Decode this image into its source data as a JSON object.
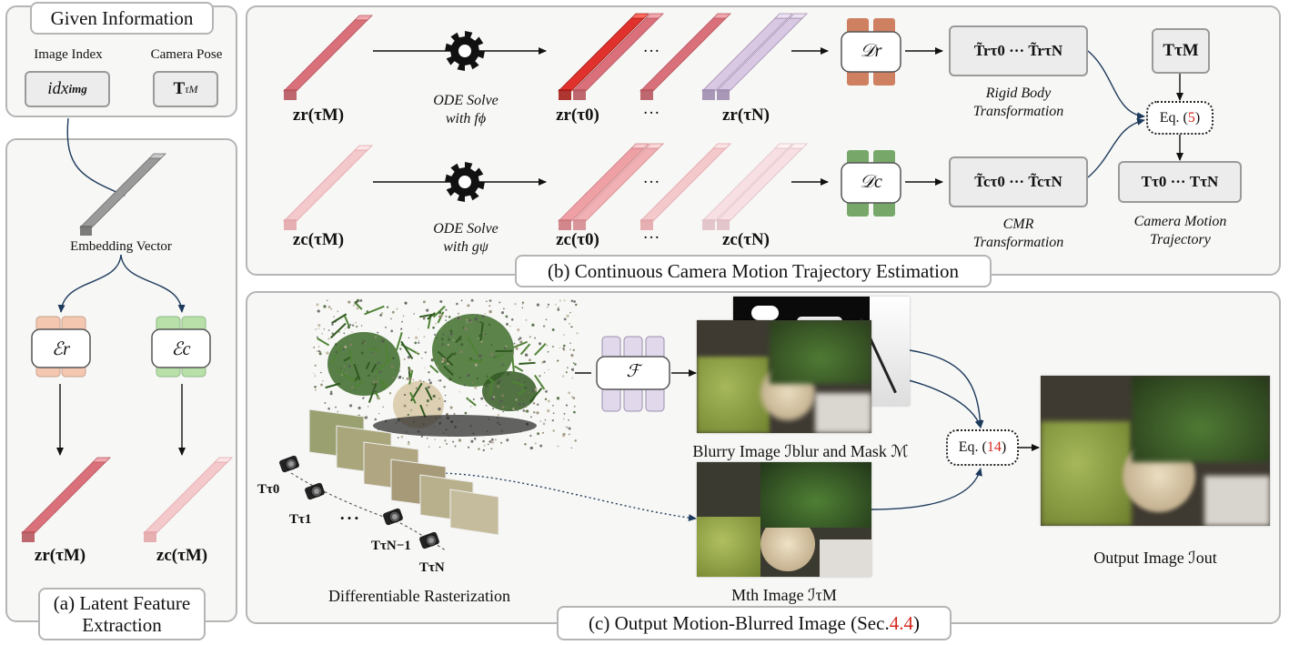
{
  "given": {
    "title": "Given Information",
    "image_index_label": "Image Index",
    "camera_pose_label": "Camera Pose",
    "idx_text": "idx",
    "idx_sub": "img",
    "pose_text": "T",
    "pose_sup": "τM"
  },
  "panel_a": {
    "embedding_label": "Embedding Vector",
    "enc_r": "ℰr",
    "enc_c": "ℰc",
    "zr_label": "zr(τM)",
    "zc_label": "zc(τM)",
    "caption_line1": "(a) Latent Feature",
    "caption_line2": "Extraction"
  },
  "panel_b": {
    "caption": "(b) Continuous Camera Motion Trajectory Estimation",
    "zr_m": "zr(τM)",
    "zc_m": "zc(τM)",
    "ode_r_line1": "ODE Solve",
    "ode_r_line2": "with fϕ",
    "ode_c_line1": "ODE Solve",
    "ode_c_line2": "with gψ",
    "zr_0": "zr(τ0)",
    "zr_n": "zr(τN)",
    "zc_0": "zc(τ0)",
    "zc_n": "zc(τN)",
    "ellipsis": "···",
    "dec_r": "𝒟r",
    "dec_c": "𝒟c",
    "trans_r": "T̃rτ0  ···  T̃rτN",
    "trans_c": "T̃cτ0  ···  T̃cτN",
    "rigid_line1": "Rigid Body",
    "rigid_line2": "Transformation",
    "cmr_line1": "CMR",
    "cmr_line2": "Transformation",
    "tm_box": "TτM",
    "eq5_prefix": "Eq. (",
    "eq5_num": "5",
    "eq5_suffix": ")",
    "traj_box": "Tτ0  ···  TτN",
    "traj_line1": "Camera Motion",
    "traj_line2": "Trajectory"
  },
  "panel_c": {
    "caption_prefix": "(c) Output Motion-Blurred Image (Sec. ",
    "caption_ref": "4.4",
    "caption_suffix": ")",
    "raster_label": "Differentiable Rasterization",
    "t0": "Tτ0",
    "t1": "Tτ1",
    "tn1": "TτN−1",
    "tn": "TτN",
    "dots": "• • •",
    "f_net": "ℱ",
    "blurry_label": "Blurry Image ℐblur and Mask ℳ",
    "mth_label": "Mth Image ℐτM",
    "eq14_prefix": "Eq. (",
    "eq14_num": "14",
    "eq14_suffix": ")",
    "output_label": "Output Image ℐout"
  },
  "colors": {
    "red": "#d9707a",
    "red_light": "#f3c9cc",
    "red_bright": "#e0312c",
    "purple_light": "#d9c8e3",
    "orange_net": "#cf8060",
    "green_net": "#77a86a",
    "enc_r_fill": "#f4c7b0",
    "enc_c_fill": "#b8e0a8",
    "f_fill": "#e1d8ec",
    "ref_red": "#d42a1e"
  }
}
